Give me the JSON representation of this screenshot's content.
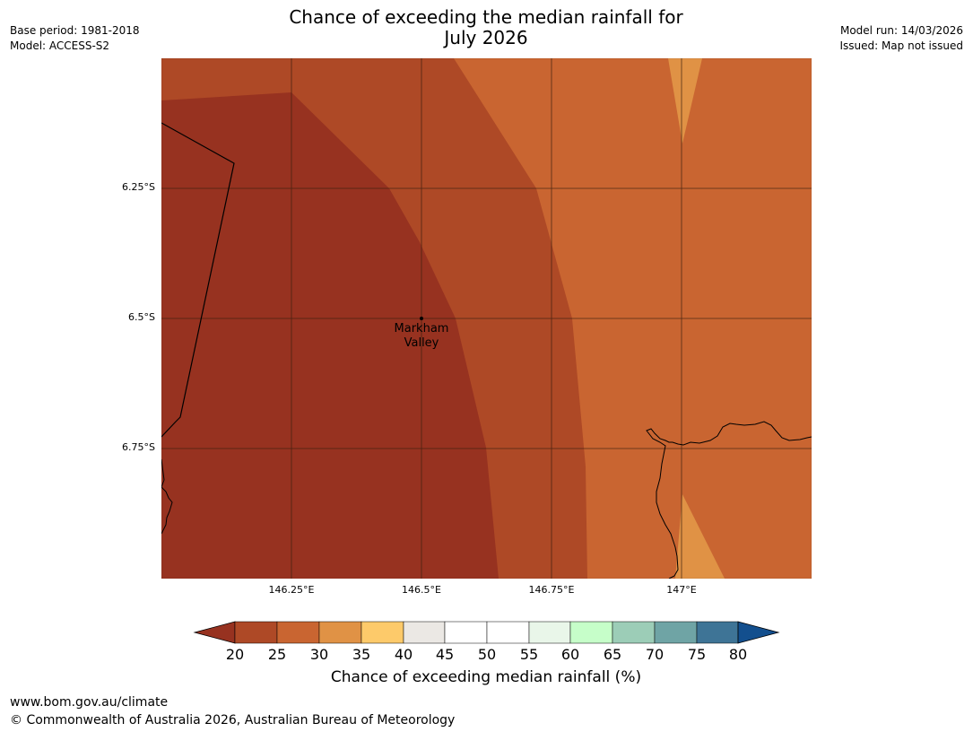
{
  "title": {
    "line1": "Chance of exceeding the median rainfall for",
    "line2": "July 2026"
  },
  "meta": {
    "base_period": "Base period: 1981-2018",
    "model": "Model: ACCESS-S2",
    "model_run": "Model run: 14/03/2026",
    "issued": "Issued: Map not issued"
  },
  "axes": {
    "lat_labels": [
      "6.25°S",
      "6.5°S",
      "6.75°S"
    ],
    "lon_labels": [
      "146.25°E",
      "146.5°E",
      "146.75°E",
      "147°E"
    ]
  },
  "place": {
    "line1": "Markham",
    "line2": "Valley"
  },
  "colorbar": {
    "ticks": [
      "20",
      "25",
      "30",
      "35",
      "40",
      "45",
      "50",
      "55",
      "60",
      "65",
      "70",
      "75",
      "80"
    ],
    "label": "Chance of exceeding median rainfall (%)",
    "colors": {
      "below_20": "#973220",
      "c20_25": "#ae4926",
      "c25_30": "#c96531",
      "c30_35": "#e09245",
      "c35_40": "#fdca6a",
      "c40_45": "#ebe8e4",
      "c45_50": "#ffffff",
      "c50_55": "#ffffff",
      "c55_60": "#e9f6e9",
      "c60_65": "#c6fec9",
      "c65_70": "#9ccdb7",
      "c70_75": "#6fa4a5",
      "c75_80": "#3e7496",
      "above_80": "#134f8e"
    }
  },
  "footer": {
    "url": "www.bom.gov.au/climate",
    "copyright": "© Commonwealth of Australia 2026, Australian Bureau of Meteorology"
  }
}
